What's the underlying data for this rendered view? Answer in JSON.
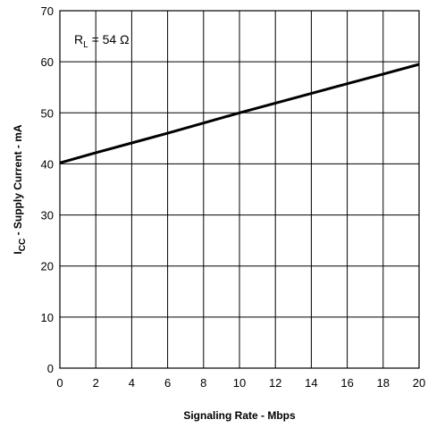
{
  "chart_data": {
    "type": "line",
    "xlabel": "Signaling Rate - Mbps",
    "ylabel": "I_CC - Supply Current - mA",
    "ylabel_main": "I",
    "ylabel_sub": "CC",
    "ylabel_rest": " - Supply Current - mA",
    "xlim": [
      0,
      20
    ],
    "ylim": [
      0,
      70
    ],
    "x_ticks": [
      "0",
      "2",
      "4",
      "6",
      "8",
      "10",
      "12",
      "14",
      "16",
      "18",
      "20"
    ],
    "y_ticks": [
      "0",
      "10",
      "20",
      "30",
      "40",
      "50",
      "60",
      "70"
    ],
    "grid": true,
    "annotation": {
      "main": "R",
      "sub": "L",
      "rest": " = 54 Ω",
      "text": "R_L = 54 Ω"
    },
    "series": [
      {
        "x": [
          0,
          2,
          4,
          6,
          8,
          10,
          12,
          14,
          16,
          18,
          20
        ],
        "y": [
          40.2,
          42.2,
          44.1,
          46.0,
          48.0,
          50.0,
          51.9,
          53.8,
          55.7,
          57.6,
          59.5
        ],
        "color": "#000000"
      }
    ]
  }
}
